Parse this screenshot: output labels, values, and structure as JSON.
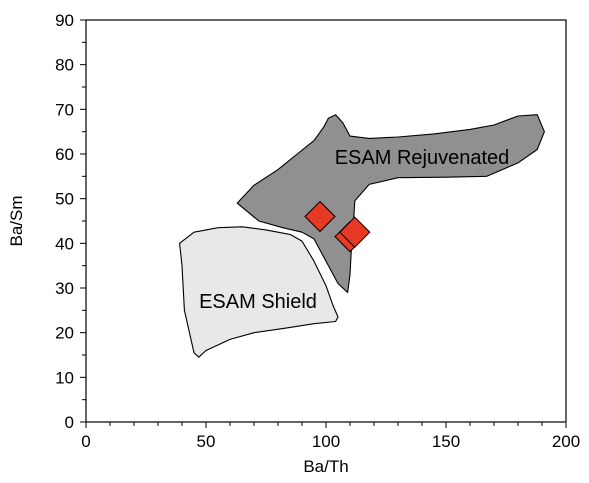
{
  "chart_data": {
    "type": "scatter",
    "title": "",
    "xlabel": "Ba/Th",
    "ylabel": "Ba/Sm",
    "xlim": [
      0,
      200
    ],
    "ylim": [
      0,
      90
    ],
    "xticks": [
      "0",
      "50",
      "100",
      "150",
      "200"
    ],
    "yticks": [
      "0",
      "10",
      "20",
      "30",
      "40",
      "50",
      "60",
      "70",
      "80",
      "90"
    ],
    "grid": false,
    "regions": [
      {
        "name": "ESAM Rejuvenated",
        "fill": "#909090",
        "outline": [
          [
            63,
            49
          ],
          [
            70,
            53
          ],
          [
            80,
            56.5
          ],
          [
            88,
            60
          ],
          [
            95,
            63
          ],
          [
            99,
            66
          ],
          [
            101,
            68
          ],
          [
            104,
            68.8
          ],
          [
            107,
            67
          ],
          [
            110,
            64
          ],
          [
            118,
            63.5
          ],
          [
            130,
            63.8
          ],
          [
            145,
            64.5
          ],
          [
            160,
            65.5
          ],
          [
            170,
            66.5
          ],
          [
            180,
            68.5
          ],
          [
            188,
            68.8
          ],
          [
            191,
            65
          ],
          [
            188,
            61
          ],
          [
            180,
            58
          ],
          [
            167,
            55
          ],
          [
            150,
            54.8
          ],
          [
            130,
            54.7
          ],
          [
            118,
            53.2
          ],
          [
            112,
            49.5
          ],
          [
            111.5,
            45
          ],
          [
            110.5,
            38
          ],
          [
            110,
            33
          ],
          [
            109,
            29
          ],
          [
            105,
            31
          ],
          [
            100,
            36
          ],
          [
            95,
            41
          ],
          [
            90,
            42.5
          ],
          [
            82,
            43.5
          ],
          [
            72,
            45
          ],
          [
            63,
            49
          ]
        ]
      },
      {
        "name": "ESAM Shield",
        "fill": "#e8e8e8",
        "outline": [
          [
            39,
            40
          ],
          [
            45,
            42.5
          ],
          [
            55,
            43.5
          ],
          [
            65,
            43.7
          ],
          [
            75,
            43
          ],
          [
            85,
            42
          ],
          [
            90,
            40.5
          ],
          [
            95,
            36
          ],
          [
            100,
            30.5
          ],
          [
            103,
            26
          ],
          [
            105,
            23.5
          ],
          [
            104,
            22.5
          ],
          [
            95,
            22
          ],
          [
            83,
            21
          ],
          [
            70,
            20
          ],
          [
            60,
            18.5
          ],
          [
            50,
            16
          ],
          [
            47,
            14.5
          ],
          [
            45,
            15.5
          ],
          [
            41,
            25
          ],
          [
            40,
            35
          ],
          [
            39,
            40
          ]
        ]
      }
    ],
    "series": [
      {
        "marker": "diamond",
        "color": "#e63a24",
        "points": [
          [
            97.5,
            46
          ],
          [
            110,
            41.5
          ],
          [
            112,
            42.5
          ]
        ]
      }
    ]
  }
}
